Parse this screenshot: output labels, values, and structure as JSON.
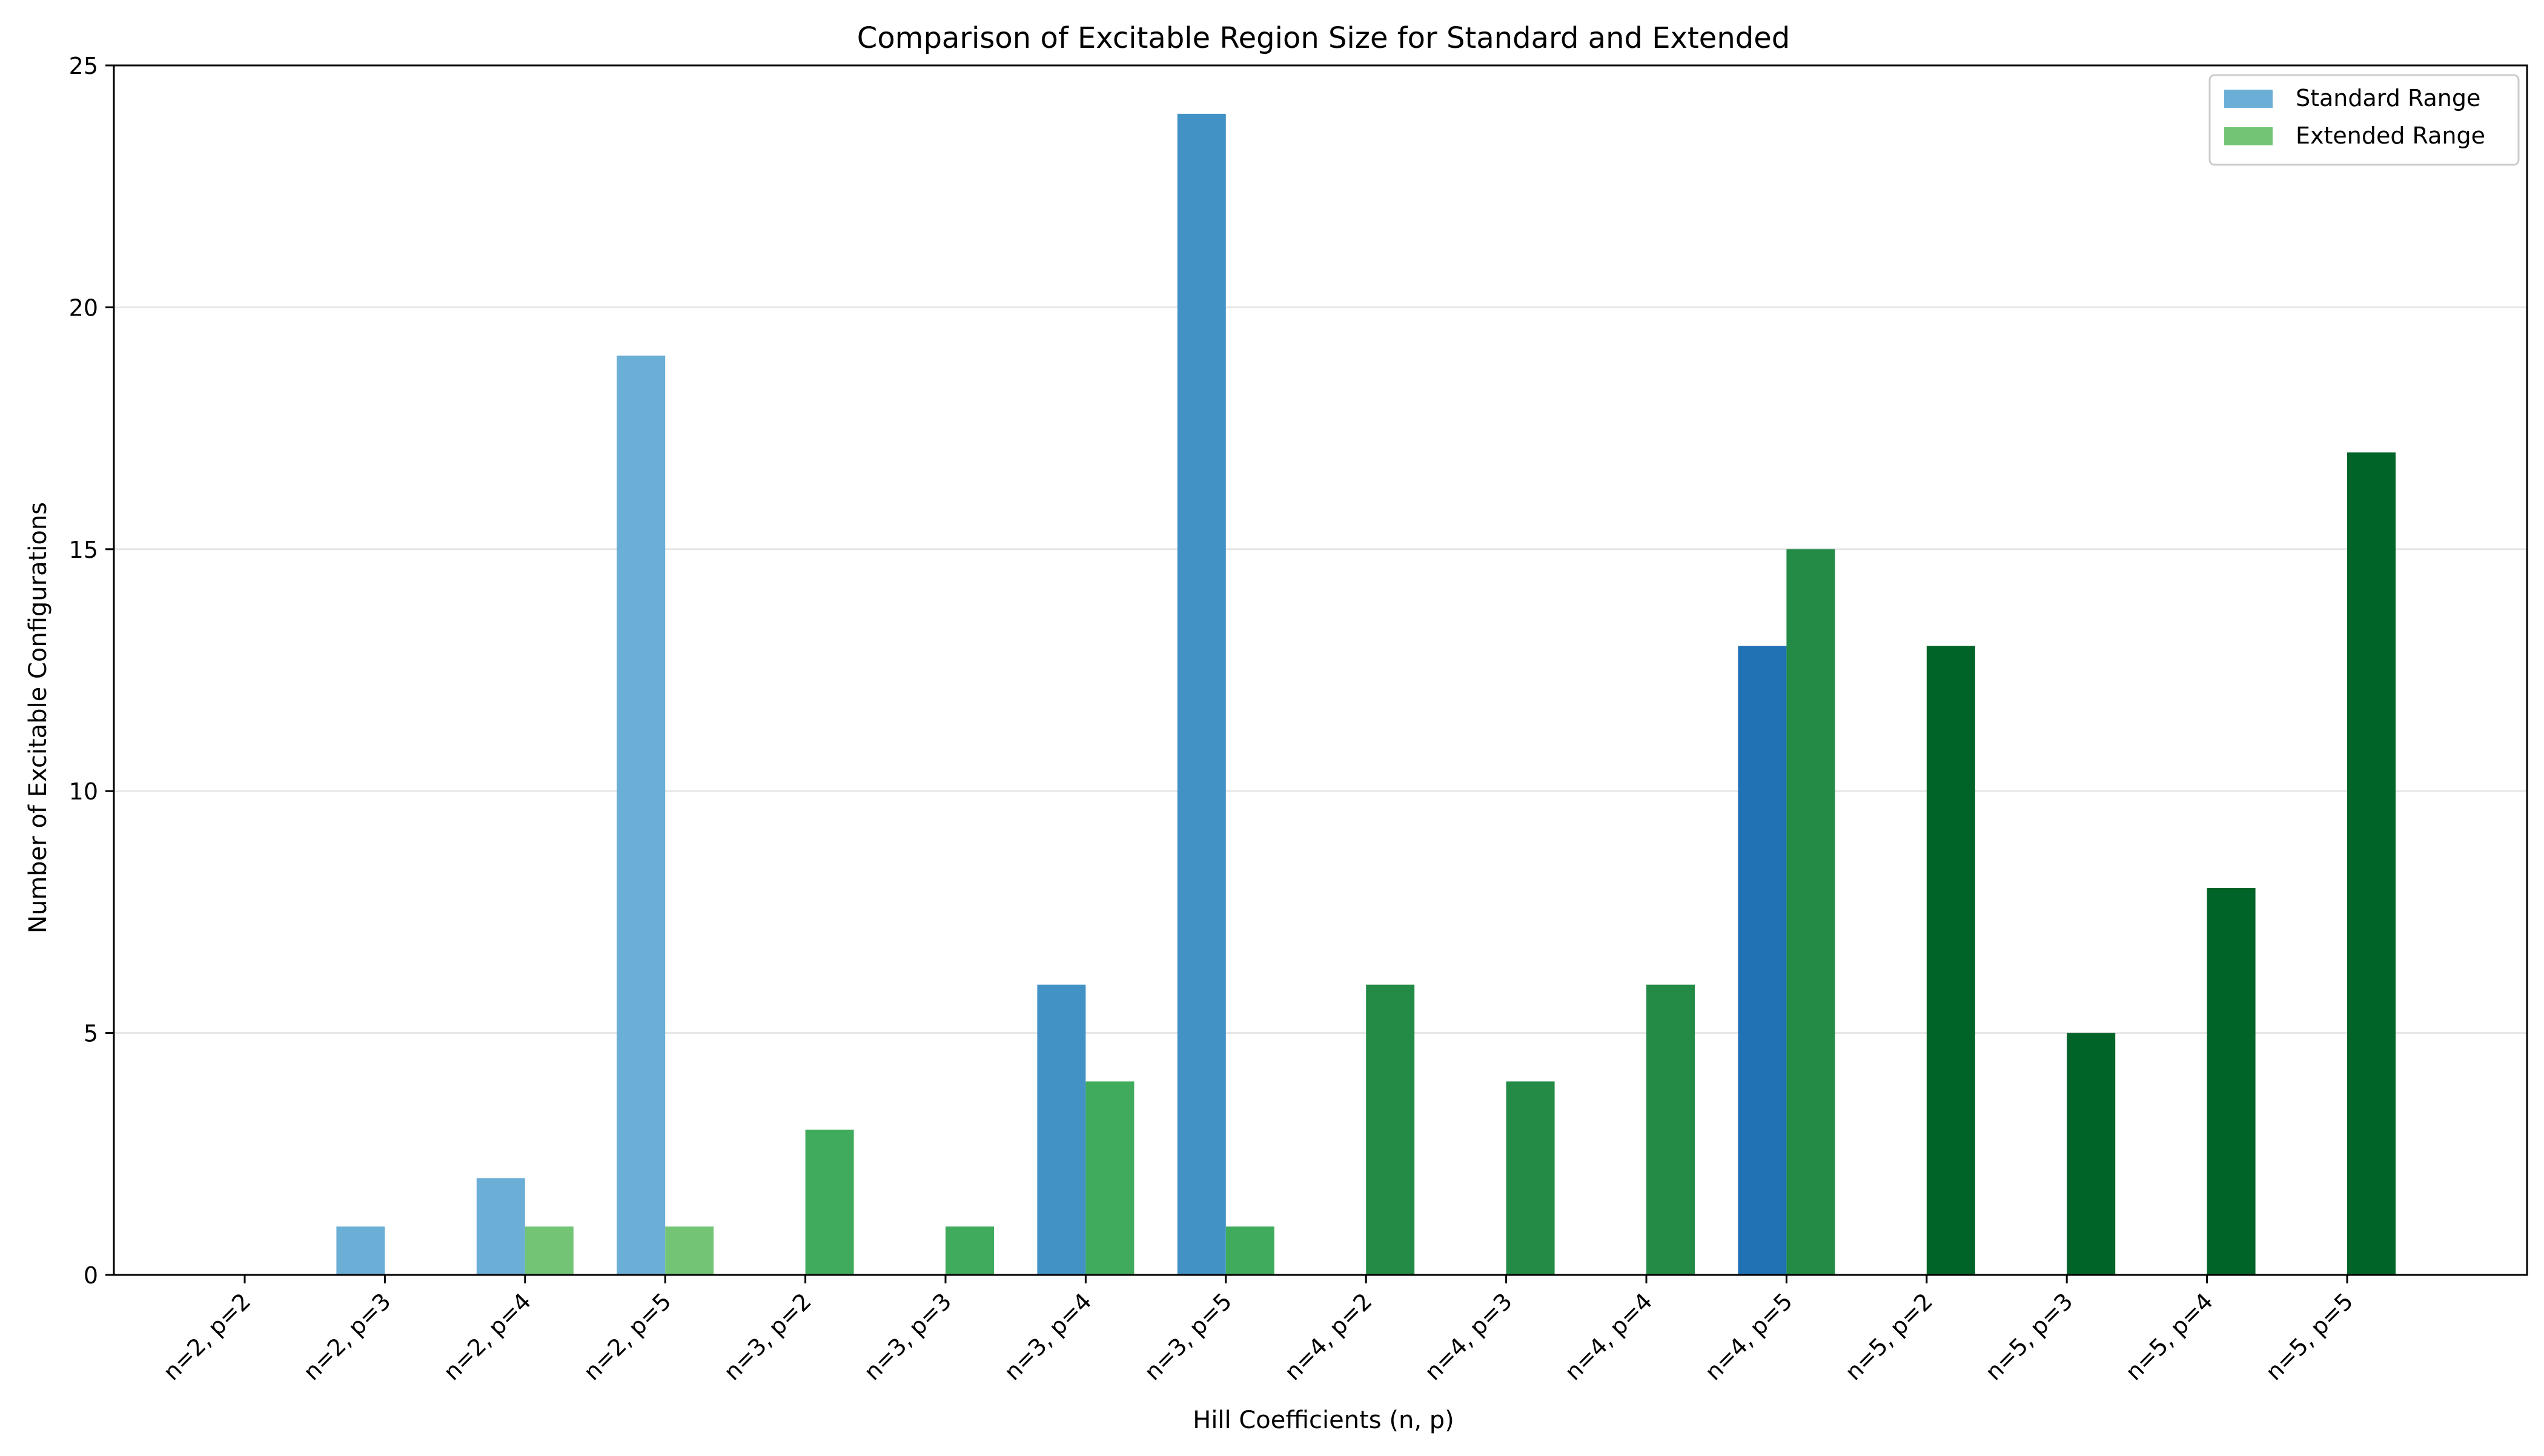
{
  "chart_data": {
    "type": "bar",
    "title": "Comparison of Excitable Region Size for Standard and Extended",
    "xlabel": "Hill Coefficients (n, p)",
    "ylabel": "Number of Excitable Configurations",
    "ylim": [
      0,
      25
    ],
    "yticks": [
      0,
      5,
      10,
      15,
      20,
      25
    ],
    "grid": "y",
    "legend_position": "top-right",
    "categories": [
      "n=2, p=2",
      "n=2, p=3",
      "n=2, p=4",
      "n=2, p=5",
      "n=3, p=2",
      "n=3, p=3",
      "n=3, p=4",
      "n=3, p=5",
      "n=4, p=2",
      "n=4, p=3",
      "n=4, p=4",
      "n=4, p=5",
      "n=5, p=2",
      "n=5, p=3",
      "n=5, p=4",
      "n=5, p=5"
    ],
    "series": [
      {
        "name": "Standard Range",
        "legend_color": "#6baed6",
        "values": [
          0,
          1,
          2,
          19,
          0,
          0,
          6,
          24,
          0,
          0,
          0,
          13,
          0,
          0,
          0,
          0
        ],
        "colors": [
          "#6baed6",
          "#6baed6",
          "#6baed6",
          "#6baed6",
          "#4292c6",
          "#4292c6",
          "#4292c6",
          "#4292c6",
          "#2171b5",
          "#2171b5",
          "#2171b5",
          "#2171b5",
          "#08519c",
          "#08519c",
          "#08519c",
          "#08519c"
        ]
      },
      {
        "name": "Extended Range",
        "legend_color": "#74c476",
        "values": [
          0,
          0,
          1,
          1,
          3,
          1,
          4,
          1,
          6,
          4,
          6,
          15,
          13,
          5,
          8,
          17
        ],
        "colors": [
          "#74c476",
          "#74c476",
          "#74c476",
          "#74c476",
          "#41ab5d",
          "#41ab5d",
          "#41ab5d",
          "#41ab5d",
          "#238b45",
          "#238b45",
          "#238b45",
          "#238b45",
          "#006428",
          "#006428",
          "#006428",
          "#006428"
        ]
      }
    ]
  }
}
